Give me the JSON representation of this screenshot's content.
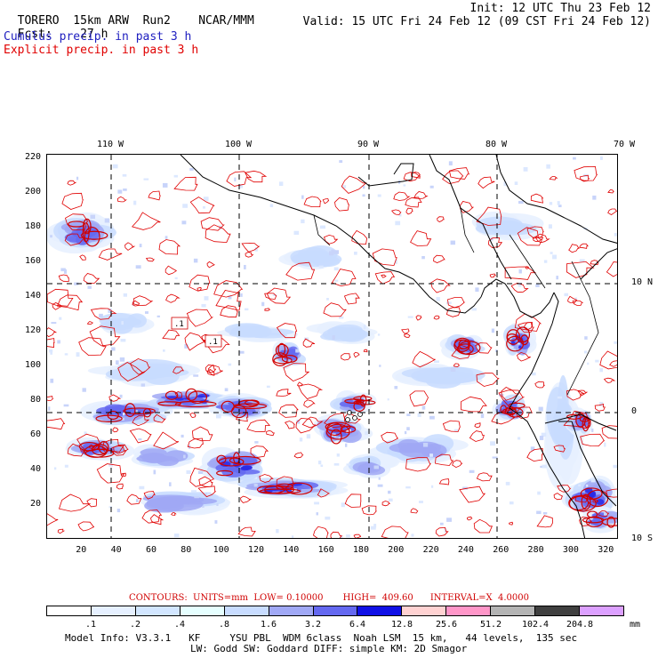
{
  "header": {
    "model": "TORERO",
    "resolution": "15km ARW",
    "run": "Run2",
    "org": "NCAR/MMM",
    "init": "Init: 12 UTC Thu 23 Feb 12",
    "fcst_label": "Fcst:",
    "fcst_value": "27 h",
    "valid": "Valid: 15 UTC Fri 24 Feb 12 (09 CST Fri 24 Feb 12)",
    "field1": "Cumulus precip. in past 3 h",
    "field2": "Explicit precip. in past 3 h"
  },
  "colors": {
    "field1": "#2020c0",
    "field2": "#e00000",
    "contour": "#e00000",
    "grid": "#000000"
  },
  "map": {
    "top_lon_labels": [
      "110 W",
      "100 W",
      "90 W",
      "80 W",
      "70 W"
    ],
    "right_lat_labels": [
      "10 N",
      "0",
      "10 S"
    ],
    "y_ticks": [
      "220",
      "200",
      "180",
      "160",
      "140",
      "120",
      "100",
      "80",
      "60",
      "40",
      "20"
    ],
    "x_ticks": [
      "20",
      "40",
      "60",
      "80",
      "100",
      "120",
      "140",
      "160",
      "180",
      "200",
      "220",
      "240",
      "260",
      "280",
      "300",
      "320"
    ],
    "x_range": [
      0,
      327
    ],
    "y_range": [
      0,
      222
    ],
    "annotations": [
      ".1",
      ".1"
    ]
  },
  "legend": {
    "contours_text": "CONTOURS:  UNITS=mm  LOW= 0.10000       HIGH=  409.60      INTERVAL=X  4.0000",
    "values": [
      ".1",
      ".2",
      ".4",
      ".8",
      "1.6",
      "3.2",
      "6.4",
      "12.8",
      "25.6",
      "51.2",
      "102.4",
      "204.8"
    ],
    "unit": "mm",
    "colors": [
      "#ffffff",
      "#e6f0ff",
      "#d2e6ff",
      "#e6ffff",
      "#c8dcff",
      "#a0a8f5",
      "#6468f0",
      "#1010e6",
      "#ffd2d2",
      "#ff96c8",
      "#b4b4b4",
      "#404040",
      "#dca0ff"
    ]
  },
  "footer": {
    "line1": "Model Info: V3.3.1   KF     YSU PBL  WDM 6class  Noah LSM  15 km,   44 levels,  135 sec",
    "line2": "LW: Godd SW: Goddard DIFF: simple KM: 2D Smagor"
  }
}
